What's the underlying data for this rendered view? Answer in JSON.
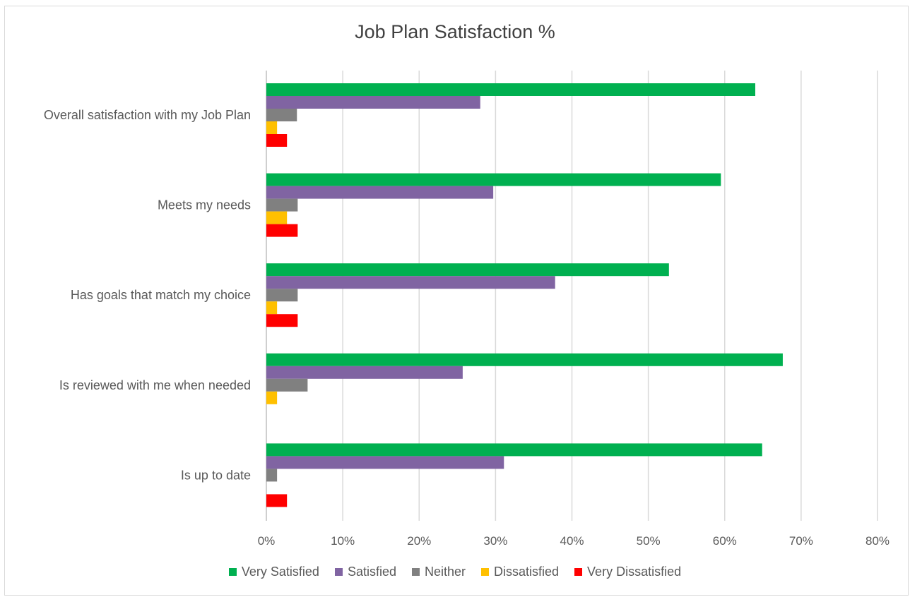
{
  "chart_data": {
    "type": "bar",
    "orientation": "horizontal",
    "title": "Job Plan Satisfaction %",
    "categories": [
      "Overall satisfaction with my Job Plan",
      "Meets my needs",
      "Has goals that match my choice",
      "Is reviewed with me when needed",
      "Is up to date"
    ],
    "series": [
      {
        "name": "Very Satisfied",
        "color": "#00b050",
        "values": [
          64,
          59.5,
          52.7,
          67.6,
          64.9
        ]
      },
      {
        "name": "Satisfied",
        "color": "#8064a2",
        "values": [
          28,
          29.7,
          37.8,
          25.7,
          31.1
        ]
      },
      {
        "name": "Neither",
        "color": "#808080",
        "values": [
          4,
          4.1,
          4.1,
          5.4,
          1.4
        ]
      },
      {
        "name": "Dissatisfied",
        "color": "#ffc000",
        "values": [
          1.4,
          2.7,
          1.4,
          1.4,
          0
        ]
      },
      {
        "name": "Very Dissatisfied",
        "color": "#ff0000",
        "values": [
          2.7,
          4.1,
          4.1,
          0,
          2.7
        ]
      }
    ],
    "xlim": [
      0,
      80
    ],
    "xticks": [
      "0%",
      "10%",
      "20%",
      "30%",
      "40%",
      "50%",
      "60%",
      "70%",
      "80%"
    ],
    "grid": true,
    "legend_position": "bottom"
  }
}
